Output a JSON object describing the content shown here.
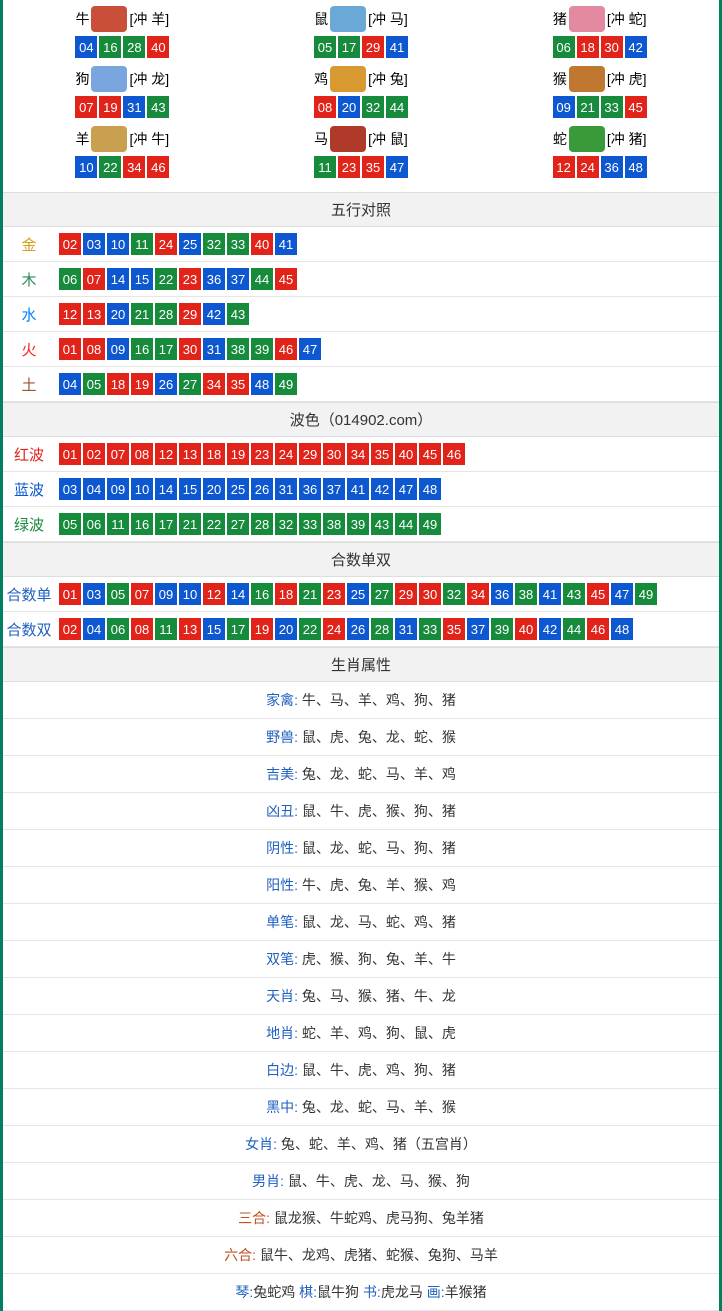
{
  "colors": {
    "red": "#e2231a",
    "blue": "#0d58d0",
    "green": "#178b3c",
    "gold": "#d4a017",
    "wood": "#2e8b57",
    "water": "#0080ff",
    "fire": "#ff2020",
    "earth": "#a0522d",
    "redWave": "#e2231a",
    "blueWave": "#0d58d0",
    "greenWave": "#178b3c",
    "labelBlue": "#2060c0",
    "labelOrange": "#c05020"
  },
  "zodiac": [
    {
      "name": "牛",
      "conflict": "[冲 羊]",
      "img": "#c94f3a",
      "nums": [
        "04",
        "16",
        "28",
        "40"
      ]
    },
    {
      "name": "鼠",
      "conflict": "[冲 马]",
      "img": "#6aa8d8",
      "nums": [
        "05",
        "17",
        "29",
        "41"
      ]
    },
    {
      "name": "猪",
      "conflict": "[冲 蛇]",
      "img": "#e48aa0",
      "nums": [
        "06",
        "18",
        "30",
        "42"
      ]
    },
    {
      "name": "狗",
      "conflict": "[冲 龙]",
      "img": "#7aa6e0",
      "nums": [
        "07",
        "19",
        "31",
        "43"
      ]
    },
    {
      "name": "鸡",
      "conflict": "[冲 兔]",
      "img": "#d89a30",
      "nums": [
        "08",
        "20",
        "32",
        "44"
      ]
    },
    {
      "name": "猴",
      "conflict": "[冲 虎]",
      "img": "#c07830",
      "nums": [
        "09",
        "21",
        "33",
        "45"
      ]
    },
    {
      "name": "羊",
      "conflict": "[冲 牛]",
      "img": "#c9a050",
      "nums": [
        "10",
        "22",
        "34",
        "46"
      ]
    },
    {
      "name": "马",
      "conflict": "[冲 鼠]",
      "img": "#b03a2a",
      "nums": [
        "11",
        "23",
        "35",
        "47"
      ]
    },
    {
      "name": "蛇",
      "conflict": "[冲 猪]",
      "img": "#3a9a3a",
      "nums": [
        "12",
        "24",
        "36",
        "48"
      ]
    }
  ],
  "wuxing": {
    "header": "五行对照",
    "rows": [
      {
        "label": "金",
        "color": "#d4a017",
        "nums": [
          "02",
          "03",
          "10",
          "11",
          "24",
          "25",
          "32",
          "33",
          "40",
          "41"
        ]
      },
      {
        "label": "木",
        "color": "#2e8b57",
        "nums": [
          "06",
          "07",
          "14",
          "15",
          "22",
          "23",
          "36",
          "37",
          "44",
          "45"
        ]
      },
      {
        "label": "水",
        "color": "#0080ff",
        "nums": [
          "12",
          "13",
          "20",
          "21",
          "28",
          "29",
          "42",
          "43"
        ]
      },
      {
        "label": "火",
        "color": "#ff2020",
        "nums": [
          "01",
          "08",
          "09",
          "16",
          "17",
          "30",
          "31",
          "38",
          "39",
          "46",
          "47"
        ]
      },
      {
        "label": "土",
        "color": "#a0522d",
        "nums": [
          "04",
          "05",
          "18",
          "19",
          "26",
          "27",
          "34",
          "35",
          "48",
          "49"
        ]
      }
    ]
  },
  "bose": {
    "header": "波色（014902.com）",
    "rows": [
      {
        "label": "红波",
        "color": "#e2231a",
        "nums": [
          "01",
          "02",
          "07",
          "08",
          "12",
          "13",
          "18",
          "19",
          "23",
          "24",
          "29",
          "30",
          "34",
          "35",
          "40",
          "45",
          "46"
        ]
      },
      {
        "label": "蓝波",
        "color": "#0d58d0",
        "nums": [
          "03",
          "04",
          "09",
          "10",
          "14",
          "15",
          "20",
          "25",
          "26",
          "31",
          "36",
          "37",
          "41",
          "42",
          "47",
          "48"
        ]
      },
      {
        "label": "绿波",
        "color": "#178b3c",
        "nums": [
          "05",
          "06",
          "11",
          "16",
          "17",
          "21",
          "22",
          "27",
          "28",
          "32",
          "33",
          "38",
          "39",
          "43",
          "44",
          "49"
        ]
      }
    ]
  },
  "heshu": {
    "header": "合数单双",
    "rows": [
      {
        "label": "合数单",
        "nums": [
          "01",
          "03",
          "05",
          "07",
          "09",
          "10",
          "12",
          "14",
          "16",
          "18",
          "21",
          "23",
          "25",
          "27",
          "29",
          "30",
          "32",
          "34",
          "36",
          "38",
          "41",
          "43",
          "45",
          "47",
          "49"
        ]
      },
      {
        "label": "合数双",
        "nums": [
          "02",
          "04",
          "06",
          "08",
          "11",
          "13",
          "15",
          "17",
          "19",
          "20",
          "22",
          "24",
          "26",
          "28",
          "31",
          "33",
          "35",
          "37",
          "39",
          "40",
          "42",
          "44",
          "46",
          "48"
        ]
      }
    ]
  },
  "attrs": {
    "header": "生肖属性",
    "rows": [
      {
        "label": "家禽:",
        "text": " 牛、马、羊、鸡、狗、猪"
      },
      {
        "label": "野兽:",
        "text": " 鼠、虎、兔、龙、蛇、猴"
      },
      {
        "label": "吉美:",
        "text": " 兔、龙、蛇、马、羊、鸡"
      },
      {
        "label": "凶丑:",
        "text": " 鼠、牛、虎、猴、狗、猪"
      },
      {
        "label": "阴性:",
        "text": " 鼠、龙、蛇、马、狗、猪"
      },
      {
        "label": "阳性:",
        "text": " 牛、虎、兔、羊、猴、鸡"
      },
      {
        "label": "单笔:",
        "text": " 鼠、龙、马、蛇、鸡、猪"
      },
      {
        "label": "双笔:",
        "text": " 虎、猴、狗、兔、羊、牛"
      },
      {
        "label": "天肖:",
        "text": " 兔、马、猴、猪、牛、龙"
      },
      {
        "label": "地肖:",
        "text": " 蛇、羊、鸡、狗、鼠、虎"
      },
      {
        "label": "白边:",
        "text": " 鼠、牛、虎、鸡、狗、猪"
      },
      {
        "label": "黑中:",
        "text": " 兔、龙、蛇、马、羊、猴"
      },
      {
        "label": "女肖:",
        "text": " 兔、蛇、羊、鸡、猪（五宫肖）"
      },
      {
        "label": "男肖:",
        "text": " 鼠、牛、虎、龙、马、猴、狗"
      },
      {
        "label": "三合:",
        "text": " 鼠龙猴、牛蛇鸡、虎马狗、兔羊猪",
        "alt": true
      },
      {
        "label": "六合:",
        "text": " 鼠牛、龙鸡、虎猪、蛇猴、兔狗、马羊",
        "alt": true
      }
    ],
    "finalRow": [
      {
        "label": "琴:",
        "text": "兔蛇鸡"
      },
      {
        "label": "棋:",
        "text": "鼠牛狗"
      },
      {
        "label": "书:",
        "text": "虎龙马"
      },
      {
        "label": "画:",
        "text": "羊猴猪"
      }
    ]
  },
  "numColors": {
    "01": "red",
    "02": "red",
    "03": "blue",
    "04": "blue",
    "05": "green",
    "06": "green",
    "07": "red",
    "08": "red",
    "09": "blue",
    "10": "blue",
    "11": "green",
    "12": "red",
    "13": "red",
    "14": "blue",
    "15": "blue",
    "16": "green",
    "17": "green",
    "18": "red",
    "19": "red",
    "20": "blue",
    "21": "green",
    "22": "green",
    "23": "red",
    "24": "red",
    "25": "blue",
    "26": "blue",
    "27": "green",
    "28": "green",
    "29": "red",
    "30": "red",
    "31": "blue",
    "32": "green",
    "33": "green",
    "34": "red",
    "35": "red",
    "36": "blue",
    "37": "blue",
    "38": "green",
    "39": "green",
    "40": "red",
    "41": "blue",
    "42": "blue",
    "43": "green",
    "44": "green",
    "45": "red",
    "46": "red",
    "47": "blue",
    "48": "blue",
    "49": "green"
  }
}
